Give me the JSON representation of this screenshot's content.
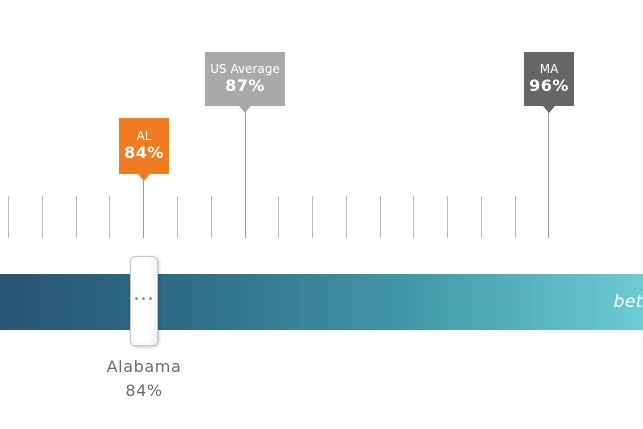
{
  "markers": {
    "al": {
      "label": "AL",
      "value": "84%",
      "color": "#f07c1f"
    },
    "us_average": {
      "label": "US Average",
      "value": "87%",
      "color": "#a9a9a9"
    },
    "ma": {
      "label": "MA",
      "value": "96%",
      "color": "#666666"
    }
  },
  "scale": {
    "bar_label": "bet",
    "tick_count": 17
  },
  "selection": {
    "state": "Alabama",
    "value": "84%",
    "slider_grip": "•••"
  }
}
